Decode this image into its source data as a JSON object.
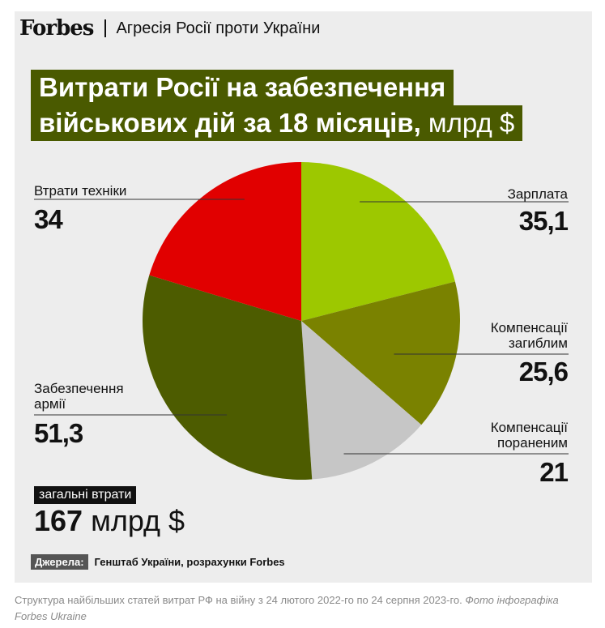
{
  "header": {
    "logo": "Forbes",
    "section": "Агресія Росії проти України"
  },
  "title": {
    "line1": "Витрати Росії на забезпечення",
    "line2": "військових дій за 18 місяців,",
    "unit": " млрд $"
  },
  "chart_data": {
    "type": "pie",
    "title": "Витрати Росії на забезпечення військових дій за 18 місяців, млрд $",
    "categories": [
      "Зарплата",
      "Компенсації загиблим",
      "Компенсації пораненим",
      "Забезпечення армії",
      "Втрати техніки"
    ],
    "values": [
      35.1,
      25.6,
      21,
      51.3,
      34
    ],
    "value_labels": [
      "35,1",
      "25,6",
      "21",
      "51,3",
      "34"
    ],
    "colors": [
      "#9dc800",
      "#7a8200",
      "#c6c6c6",
      "#4d5c00",
      "#e10000"
    ],
    "start": "12 o'clock",
    "direction": "clockwise"
  },
  "labels": {
    "zarplata": {
      "line1": "Зарплата",
      "value": "35,1"
    },
    "zahyblym": {
      "line1": "Компенсації",
      "line2": "загиблим",
      "value": "25,6"
    },
    "poranenym": {
      "line1": "Компенсації",
      "line2": "пораненим",
      "value": "21"
    },
    "armii": {
      "line1": "Забезпечення",
      "line2": "армії",
      "value": "51,3"
    },
    "tekhniky": {
      "line1": "Втрати техніки",
      "value": "34"
    }
  },
  "total": {
    "badge": "загальні втрати",
    "number": "167",
    "unit": " млрд $"
  },
  "source": {
    "badge": "Джерела:",
    "text": "Генштаб України, розрахунки Forbes"
  },
  "caption": {
    "text": "Структура найбільших статей витрат РФ на війну з 24 лютого 2022-го по 24 серпня 2023-го. ",
    "credit": "Фото інфографіка Forbes Ukraine"
  }
}
